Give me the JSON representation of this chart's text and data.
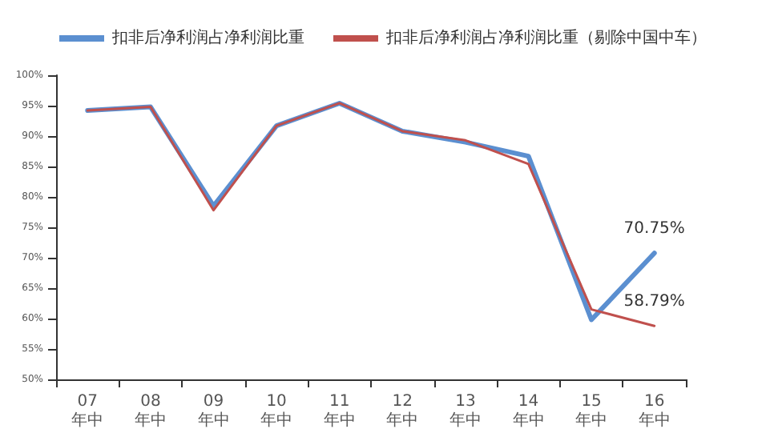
{
  "chart_data": {
    "type": "line",
    "categories": [
      "07\n年中",
      "08\n年中",
      "09\n年中",
      "10\n年中",
      "11\n年中",
      "12\n年中",
      "13\n年中",
      "14\n年中",
      "15\n年中",
      "16\n年中"
    ],
    "series": [
      {
        "name": "扣非后净利润占净利润比重",
        "color": "#5b8fd0",
        "values": [
          94.2,
          94.8,
          78.5,
          91.7,
          95.4,
          90.8,
          89.0,
          86.7,
          59.8,
          70.75
        ],
        "value_labels": [
          null,
          null,
          null,
          null,
          null,
          null,
          null,
          null,
          null,
          "70.75%"
        ]
      },
      {
        "name": "扣非后净利润占净利润比重（剔除中国中车）",
        "color": "#c0504d",
        "values": [
          94.2,
          94.8,
          77.8,
          91.7,
          95.4,
          90.8,
          89.3,
          85.4,
          61.5,
          58.79
        ],
        "value_labels": [
          null,
          null,
          null,
          null,
          null,
          null,
          null,
          null,
          null,
          "58.79%"
        ]
      }
    ],
    "ylim": [
      50,
      100
    ],
    "yticks": [
      {
        "value": 50,
        "label": "50%"
      },
      {
        "value": 55,
        "label": "55%"
      },
      {
        "value": 60,
        "label": "60%"
      },
      {
        "value": 65,
        "label": "65%"
      },
      {
        "value": 70,
        "label": "70%"
      },
      {
        "value": 75,
        "label": "75%"
      },
      {
        "value": 80,
        "label": "80%"
      },
      {
        "value": 85,
        "label": "85%"
      },
      {
        "value": 90,
        "label": "90%"
      },
      {
        "value": 95,
        "label": "95%"
      },
      {
        "value": 100,
        "label": "100%"
      }
    ],
    "grid": false,
    "legend": "top",
    "marker": "none",
    "line_style": "solid"
  }
}
